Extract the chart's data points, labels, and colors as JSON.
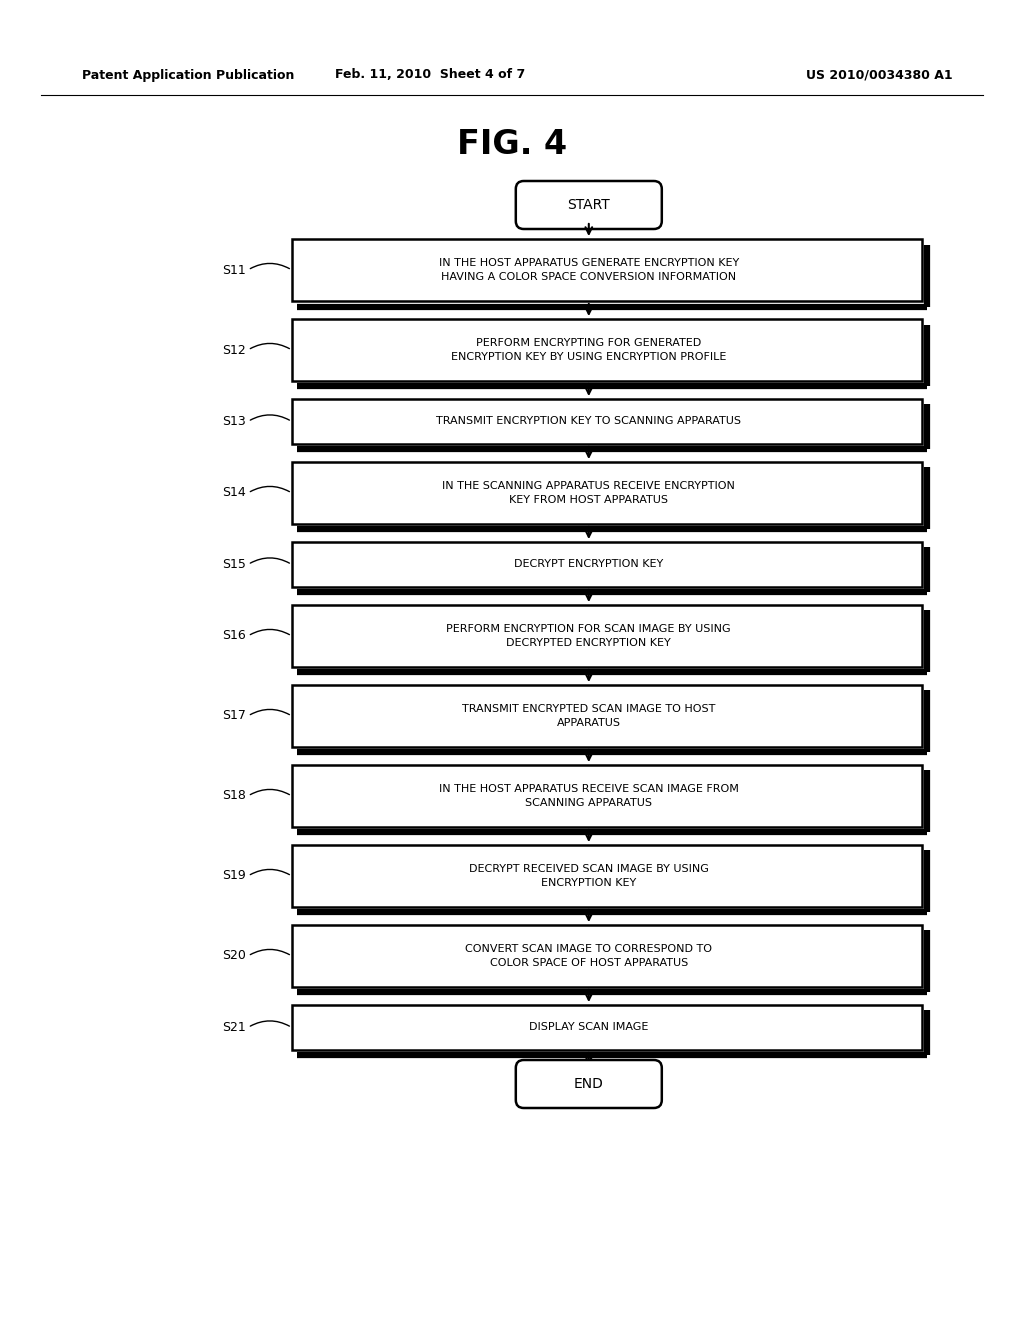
{
  "title": "FIG. 4",
  "header_left": "Patent Application Publication",
  "header_center": "Feb. 11, 2010  Sheet 4 of 7",
  "header_right": "US 2010/0034380 A1",
  "bg_color": "#ffffff",
  "steps": [
    {
      "label": "S11",
      "text": "IN THE HOST APPARATUS GENERATE ENCRYPTION KEY\nHAVING A COLOR SPACE CONVERSION INFORMATION",
      "two_line": true
    },
    {
      "label": "S12",
      "text": "PERFORM ENCRYPTING FOR GENERATED\nENCRYPTION KEY BY USING ENCRYPTION PROFILE",
      "two_line": true
    },
    {
      "label": "S13",
      "text": "TRANSMIT ENCRYPTION KEY TO SCANNING APPARATUS",
      "two_line": false
    },
    {
      "label": "S14",
      "text": "IN THE SCANNING APPARATUS RECEIVE ENCRYPTION\nKEY FROM HOST APPARATUS",
      "two_line": true
    },
    {
      "label": "S15",
      "text": "DECRYPT ENCRYPTION KEY",
      "two_line": false
    },
    {
      "label": "S16",
      "text": "PERFORM ENCRYPTION FOR SCAN IMAGE BY USING\nDECRYPTED ENCRYPTION KEY",
      "two_line": true
    },
    {
      "label": "S17",
      "text": "TRANSMIT ENCRYPTED SCAN IMAGE TO HOST\nAPPARATUS",
      "two_line": true
    },
    {
      "label": "S18",
      "text": "IN THE HOST APPARATUS RECEIVE SCAN IMAGE FROM\nSCANNING APPARATUS",
      "two_line": true
    },
    {
      "label": "S19",
      "text": "DECRYPT RECEIVED SCAN IMAGE BY USING\nENCRYPTION KEY",
      "two_line": true
    },
    {
      "label": "S20",
      "text": "CONVERT SCAN IMAGE TO CORRESPOND TO\nCOLOR SPACE OF HOST APPARATUS",
      "two_line": true
    },
    {
      "label": "S21",
      "text": "DISPLAY SCAN IMAGE",
      "two_line": false
    }
  ],
  "text_color": "#000000",
  "font_size_step": 8,
  "font_size_label": 9,
  "font_size_title": 24,
  "font_size_header": 9
}
